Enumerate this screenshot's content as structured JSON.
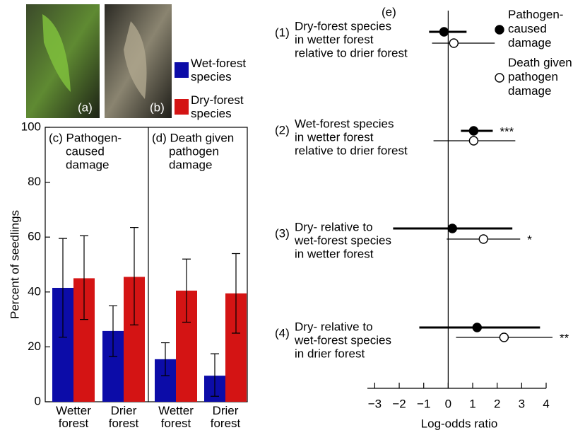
{
  "photos": [
    {
      "label": "(a)"
    },
    {
      "label": "(b)"
    }
  ],
  "chart_data": [
    {
      "type": "bar",
      "ylabel": "Percent of seedlings",
      "ylim": [
        0,
        100
      ],
      "yticks": [
        0,
        20,
        40,
        60,
        80,
        100
      ],
      "panels": [
        {
          "title": [
            "(c) Pathogen-",
            "caused",
            "damage"
          ]
        },
        {
          "title": [
            "(d) Death given",
            "pathogen",
            "damage"
          ]
        }
      ],
      "categories": [
        "Wetter forest",
        "Drier forest",
        "Wetter forest",
        "Drier forest"
      ],
      "series": [
        {
          "name": "Wet-forest species",
          "color": "#0c0ca8",
          "values": [
            41.5,
            25.8,
            15.5,
            9.5
          ],
          "lower": [
            23.5,
            16.5,
            9.5,
            2
          ],
          "upper": [
            59.5,
            35,
            21.5,
            17.5
          ]
        },
        {
          "name": "Dry-forest species",
          "color": "#d41414",
          "values": [
            45,
            45.5,
            40.5,
            39.5
          ],
          "lower": [
            30,
            28,
            29,
            25
          ],
          "upper": [
            60.5,
            63.5,
            52,
            54
          ]
        }
      ]
    },
    {
      "type": "forest",
      "panel_label": "(e)",
      "xlabel": "Log-odds ratio",
      "xlim": [
        -3.3,
        4
      ],
      "xticks": [
        {
          "value": -3,
          "label": "−3"
        },
        {
          "value": -2,
          "label": "−2"
        },
        {
          "value": -1,
          "label": "−1"
        },
        0,
        1,
        2,
        3,
        4
      ],
      "rows": [
        {
          "number": "(1)",
          "text": [
            "Dry-forest species",
            "in wetter forest",
            "relative to drier forest"
          ]
        },
        {
          "number": "(2)",
          "text": [
            "Wet-forest species",
            "in wetter forest",
            "relative to drier forest"
          ]
        },
        {
          "number": "(3)",
          "text": [
            "Dry- relative to",
            "wet-forest species",
            "in wetter forest"
          ]
        },
        {
          "number": "(4)",
          "text": [
            "Dry- relative to",
            "wet-forest species",
            "in drier forest"
          ]
        }
      ],
      "series": [
        {
          "name": "Pathogen-caused damage",
          "marker": "filled",
          "color": "#000000",
          "values": [
            -0.17,
            1.04,
            0.17,
            1.18
          ],
          "lower": [
            -0.78,
            0.52,
            -2.25,
            -1.18
          ],
          "upper": [
            0.75,
            1.82,
            2.62,
            3.75
          ],
          "significance": [
            null,
            "***",
            null,
            null
          ]
        },
        {
          "name": "Death given pathogen damage",
          "marker": "open",
          "color": "#000000",
          "values": [
            0.23,
            1.04,
            1.44,
            2.28
          ],
          "lower": [
            -0.66,
            -0.6,
            -0.06,
            0.32
          ],
          "upper": [
            1.9,
            2.74,
            2.94,
            4.26
          ],
          "significance": [
            null,
            null,
            "*",
            "**"
          ]
        }
      ]
    }
  ]
}
